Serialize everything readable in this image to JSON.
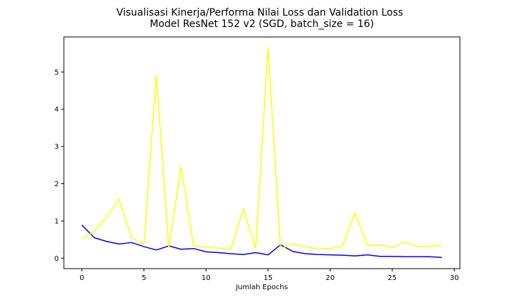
{
  "chart_data": {
    "type": "line",
    "title_line1": "Visualisasi Kinerja/Performa Nilai Loss dan Validation Loss",
    "title_line2": "Model ResNet 152 v2 (SGD, batch_size = 16)",
    "xlabel": "Jumlah Epochs",
    "ylabel": "",
    "xlim": [
      -1.45,
      30.45
    ],
    "ylim": [
      -0.28,
      5.94
    ],
    "xticks": [
      0,
      5,
      10,
      15,
      20,
      25,
      30
    ],
    "yticks": [
      0,
      1,
      2,
      3,
      4,
      5
    ],
    "grid": false,
    "x": [
      0,
      1,
      2,
      3,
      4,
      5,
      6,
      7,
      8,
      9,
      10,
      11,
      12,
      13,
      14,
      15,
      16,
      17,
      18,
      19,
      20,
      21,
      22,
      23,
      24,
      25,
      26,
      27,
      28,
      29
    ],
    "series": [
      {
        "color": "#0000ff",
        "values": [
          0.89,
          0.55,
          0.45,
          0.38,
          0.42,
          0.31,
          0.22,
          0.33,
          0.24,
          0.26,
          0.17,
          0.15,
          0.12,
          0.1,
          0.15,
          0.09,
          0.36,
          0.18,
          0.12,
          0.1,
          0.09,
          0.08,
          0.06,
          0.09,
          0.05,
          0.05,
          0.04,
          0.04,
          0.04,
          0.02
        ]
      },
      {
        "color": "#ffff00",
        "values": [
          0.52,
          0.72,
          1.1,
          1.58,
          0.55,
          0.37,
          4.91,
          0.28,
          2.45,
          0.33,
          0.3,
          0.27,
          0.23,
          1.32,
          0.27,
          5.66,
          0.26,
          0.38,
          0.31,
          0.25,
          0.26,
          0.33,
          1.22,
          0.34,
          0.35,
          0.28,
          0.44,
          0.31,
          0.32,
          0.35
        ]
      }
    ]
  }
}
